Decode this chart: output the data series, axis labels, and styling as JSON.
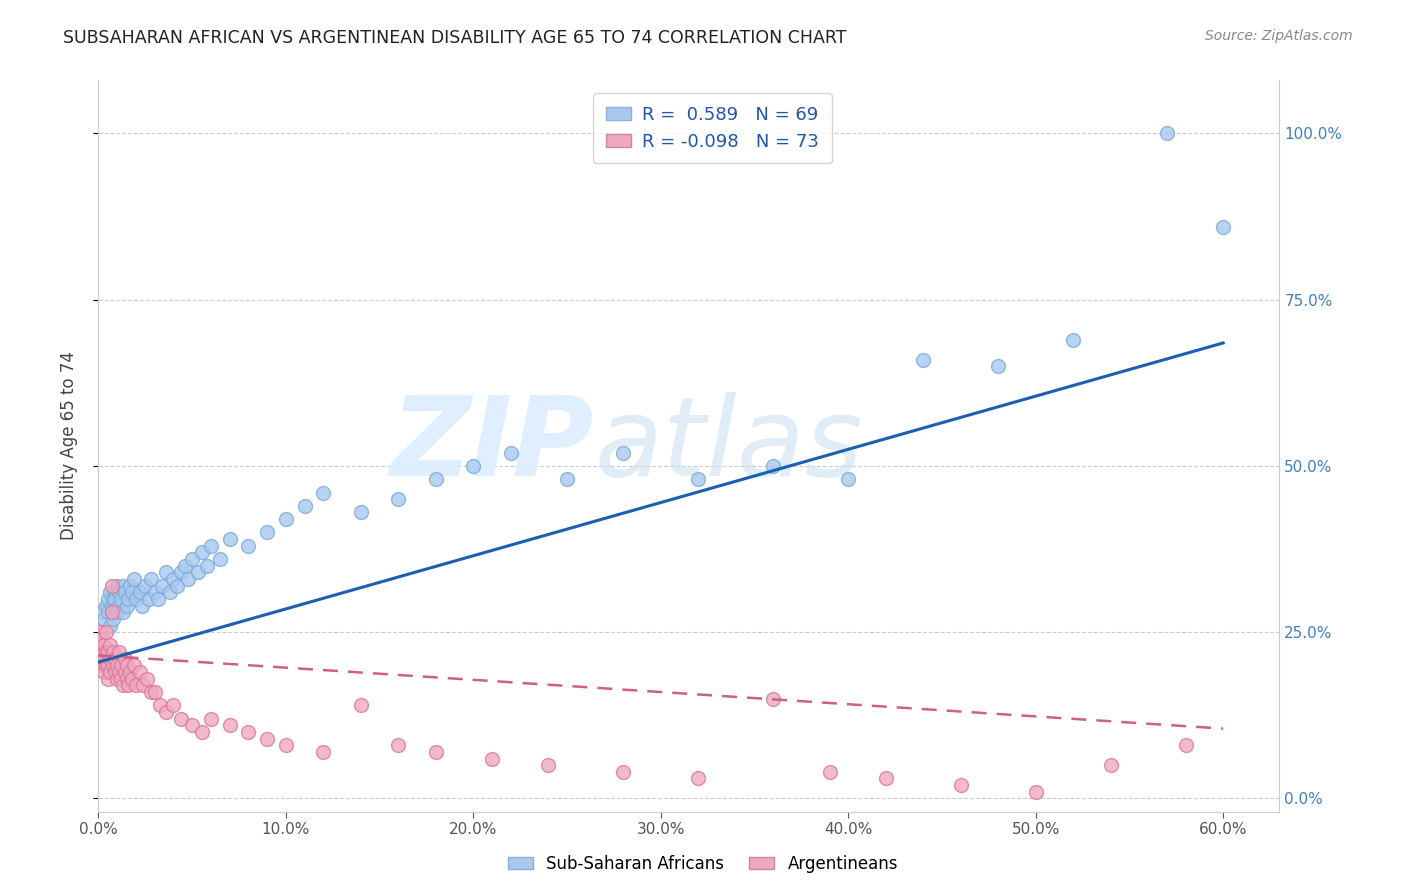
{
  "title": "SUBSAHARAN AFRICAN VS ARGENTINEAN DISABILITY AGE 65 TO 74 CORRELATION CHART",
  "source": "Source: ZipAtlas.com",
  "xlim": [
    0.0,
    0.63
  ],
  "ylim": [
    -0.02,
    1.08
  ],
  "ylabel": "Disability Age 65 to 74",
  "blue_color": "#a8c8f0",
  "blue_edge_color": "#7aaad8",
  "pink_color": "#f0a8c0",
  "pink_edge_color": "#d87898",
  "blue_line_color": "#1a5fb0",
  "pink_line_color": "#d06080",
  "blue_scatter_x": [
    0.002,
    0.003,
    0.004,
    0.005,
    0.005,
    0.006,
    0.006,
    0.007,
    0.007,
    0.008,
    0.008,
    0.009,
    0.009,
    0.01,
    0.01,
    0.011,
    0.011,
    0.012,
    0.013,
    0.013,
    0.014,
    0.015,
    0.016,
    0.017,
    0.018,
    0.019,
    0.02,
    0.022,
    0.023,
    0.025,
    0.027,
    0.028,
    0.03,
    0.032,
    0.034,
    0.036,
    0.038,
    0.04,
    0.042,
    0.044,
    0.046,
    0.048,
    0.05,
    0.053,
    0.055,
    0.058,
    0.06,
    0.065,
    0.07,
    0.08,
    0.09,
    0.1,
    0.11,
    0.12,
    0.14,
    0.16,
    0.18,
    0.2,
    0.22,
    0.25,
    0.28,
    0.32,
    0.36,
    0.4,
    0.44,
    0.48,
    0.52,
    0.57,
    0.6
  ],
  "blue_scatter_y": [
    0.28,
    0.27,
    0.29,
    0.3,
    0.28,
    0.26,
    0.31,
    0.29,
    0.28,
    0.3,
    0.27,
    0.31,
    0.3,
    0.28,
    0.32,
    0.29,
    0.31,
    0.3,
    0.28,
    0.32,
    0.31,
    0.29,
    0.3,
    0.32,
    0.31,
    0.33,
    0.3,
    0.31,
    0.29,
    0.32,
    0.3,
    0.33,
    0.31,
    0.3,
    0.32,
    0.34,
    0.31,
    0.33,
    0.32,
    0.34,
    0.35,
    0.33,
    0.36,
    0.34,
    0.37,
    0.35,
    0.38,
    0.36,
    0.39,
    0.38,
    0.4,
    0.42,
    0.44,
    0.46,
    0.43,
    0.45,
    0.48,
    0.5,
    0.52,
    0.48,
    0.52,
    0.48,
    0.5,
    0.48,
    0.66,
    0.65,
    0.69,
    1.0,
    0.86
  ],
  "pink_scatter_x": [
    0.0,
    0.0,
    0.001,
    0.001,
    0.001,
    0.002,
    0.002,
    0.002,
    0.003,
    0.003,
    0.003,
    0.004,
    0.004,
    0.004,
    0.005,
    0.005,
    0.005,
    0.006,
    0.006,
    0.006,
    0.007,
    0.007,
    0.008,
    0.008,
    0.009,
    0.009,
    0.01,
    0.01,
    0.011,
    0.011,
    0.012,
    0.012,
    0.013,
    0.014,
    0.014,
    0.015,
    0.015,
    0.016,
    0.017,
    0.018,
    0.019,
    0.02,
    0.022,
    0.024,
    0.026,
    0.028,
    0.03,
    0.033,
    0.036,
    0.04,
    0.044,
    0.05,
    0.055,
    0.06,
    0.07,
    0.08,
    0.09,
    0.1,
    0.12,
    0.14,
    0.16,
    0.18,
    0.21,
    0.24,
    0.28,
    0.32,
    0.36,
    0.39,
    0.42,
    0.46,
    0.5,
    0.54,
    0.58
  ],
  "pink_scatter_y": [
    0.24,
    0.22,
    0.25,
    0.21,
    0.23,
    0.2,
    0.22,
    0.24,
    0.19,
    0.21,
    0.23,
    0.2,
    0.22,
    0.25,
    0.18,
    0.2,
    0.22,
    0.19,
    0.21,
    0.23,
    0.28,
    0.32,
    0.2,
    0.22,
    0.19,
    0.21,
    0.18,
    0.2,
    0.19,
    0.22,
    0.18,
    0.2,
    0.17,
    0.19,
    0.21,
    0.18,
    0.2,
    0.17,
    0.19,
    0.18,
    0.2,
    0.17,
    0.19,
    0.17,
    0.18,
    0.16,
    0.16,
    0.14,
    0.13,
    0.14,
    0.12,
    0.11,
    0.1,
    0.12,
    0.11,
    0.1,
    0.09,
    0.08,
    0.07,
    0.14,
    0.08,
    0.07,
    0.06,
    0.05,
    0.04,
    0.03,
    0.15,
    0.04,
    0.03,
    0.02,
    0.01,
    0.05,
    0.08
  ],
  "blue_trend_x": [
    0.0,
    0.6
  ],
  "blue_trend_y": [
    0.205,
    0.685
  ],
  "pink_trend_x": [
    0.0,
    0.6
  ],
  "pink_trend_y": [
    0.215,
    0.105
  ],
  "ytick_vals": [
    0.0,
    0.25,
    0.5,
    0.75,
    1.0
  ],
  "xtick_vals": [
    0.0,
    0.1,
    0.2,
    0.3,
    0.4,
    0.5,
    0.6
  ]
}
